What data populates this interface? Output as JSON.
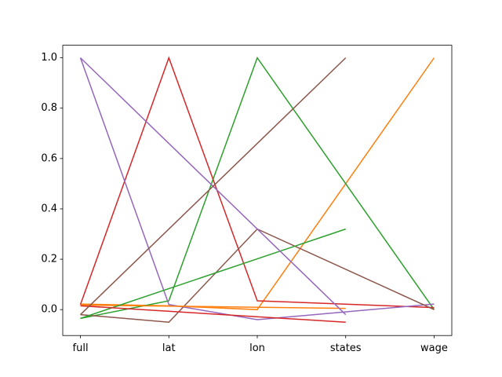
{
  "chart_data": {
    "type": "line",
    "categories": [
      "full",
      "lat",
      "lon",
      "states",
      "wage"
    ],
    "series": [
      {
        "color": "#ff7f0e",
        "x": [
          "full",
          "lat",
          "lon",
          "wage"
        ],
        "values": [
          0.022,
          0.015,
          0.0,
          1.0
        ]
      },
      {
        "color": "#2ca02c",
        "x": [
          "full",
          "lat",
          "lon",
          "wage"
        ],
        "values": [
          -0.035,
          0.035,
          1.0,
          0.0
        ]
      },
      {
        "color": "#d62728",
        "x": [
          "full",
          "lat",
          "lon",
          "wage"
        ],
        "values": [
          0.02,
          1.0,
          0.035,
          0.008
        ]
      },
      {
        "color": "#9467bd",
        "x": [
          "full",
          "lat",
          "lon",
          "wage"
        ],
        "values": [
          1.0,
          0.02,
          -0.04,
          0.022
        ]
      },
      {
        "color": "#8c564b",
        "x": [
          "full",
          "lat",
          "lon",
          "wage"
        ],
        "values": [
          -0.02,
          -0.05,
          0.32,
          0.0
        ]
      },
      {
        "color": "#ff7f0e",
        "x": [
          "full",
          "states"
        ],
        "values": [
          0.018,
          0.005
        ]
      },
      {
        "color": "#2ca02c",
        "x": [
          "full",
          "states"
        ],
        "values": [
          -0.035,
          0.32
        ]
      },
      {
        "color": "#d62728",
        "x": [
          "full",
          "states"
        ],
        "values": [
          0.015,
          -0.05
        ]
      },
      {
        "color": "#9467bd",
        "x": [
          "full",
          "states"
        ],
        "values": [
          1.0,
          -0.02
        ]
      },
      {
        "color": "#8c564b",
        "x": [
          "full",
          "states"
        ],
        "values": [
          -0.02,
          1.0
        ]
      }
    ],
    "ylim": [
      -0.103,
      1.05
    ],
    "yticks": [
      {
        "value": 0.0,
        "label": "0.0"
      },
      {
        "value": 0.2,
        "label": "0.2"
      },
      {
        "value": 0.4,
        "label": "0.4"
      },
      {
        "value": 0.6,
        "label": "0.6"
      },
      {
        "value": 0.8,
        "label": "0.8"
      },
      {
        "value": 1.0,
        "label": "1.0"
      }
    ]
  }
}
